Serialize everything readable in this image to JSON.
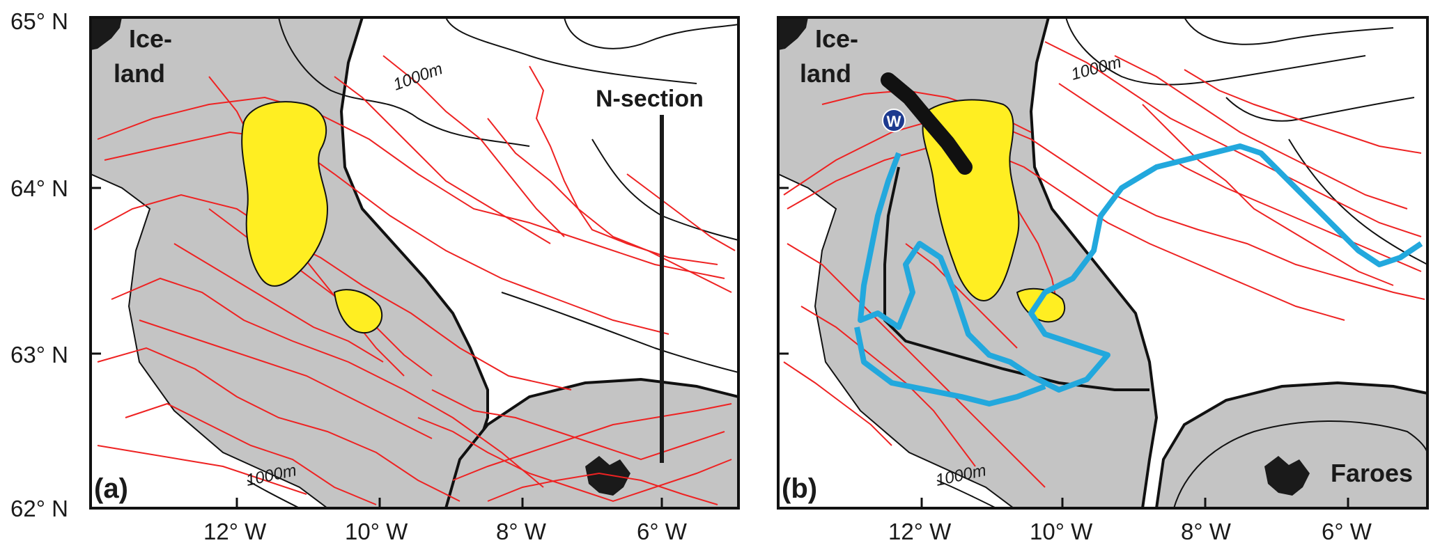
{
  "lat_labels": [
    "65° N",
    "64° N",
    "63° N",
    "62° N"
  ],
  "lon_labels": [
    "12° W",
    "10° W",
    "8° W",
    "6° W"
  ],
  "panel_a": {
    "letter": "(a)",
    "land_line1": "Ice-",
    "land_line2": "land",
    "contour_label_top": "1000m",
    "contour_label_bottom": "1000m",
    "section_label": "N-section"
  },
  "panel_b": {
    "letter": "(b)",
    "land_line1": "Ice-",
    "land_line2": "land",
    "contour_label_top": "1000m",
    "contour_label_bottom": "1000m",
    "marker_label": "W",
    "faroes_label": "Faroes"
  },
  "colors": {
    "land": "#1a1a1a",
    "shelf": "#c4c4c4",
    "tracks": "#ee2222",
    "tracks_dark": "#a02020",
    "patch": "#ffee22",
    "blue_path": "#22a8dd",
    "marker": "#1d3a8f"
  }
}
